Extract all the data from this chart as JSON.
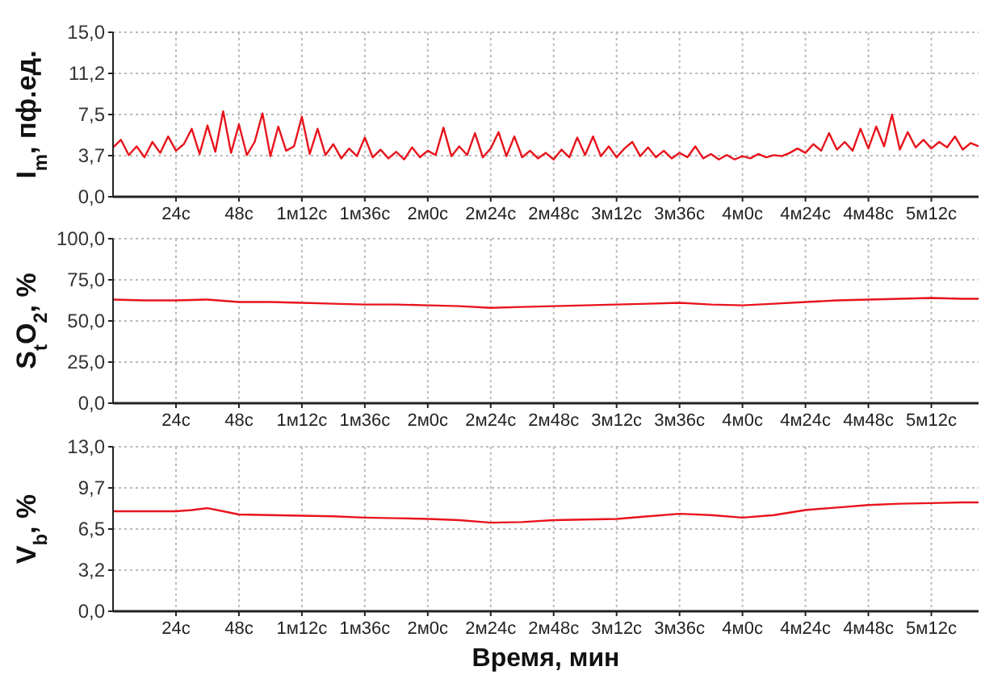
{
  "chart_data": [
    {
      "type": "line",
      "ylabel": "I$_{m}$, пф.ед.",
      "xlim": [
        0,
        330
      ],
      "xticks": [
        {
          "value": 24,
          "label": "24с"
        },
        {
          "value": 48,
          "label": "48с"
        },
        {
          "value": 72,
          "label": "1м12с"
        },
        {
          "value": 96,
          "label": "1м36с"
        },
        {
          "value": 120,
          "label": "2м0с"
        },
        {
          "value": 144,
          "label": "2м24с"
        },
        {
          "value": 168,
          "label": "2м48с"
        },
        {
          "value": 192,
          "label": "3м12с"
        },
        {
          "value": 216,
          "label": "3м36с"
        },
        {
          "value": 240,
          "label": "4м0с"
        },
        {
          "value": 264,
          "label": "4м24с"
        },
        {
          "value": 288,
          "label": "4м48с"
        },
        {
          "value": 312,
          "label": "5м12с"
        }
      ],
      "ylim": [
        0,
        15
      ],
      "yticks": [
        {
          "value": 0,
          "label": "0,0"
        },
        {
          "value": 3.75,
          "label": "3,7"
        },
        {
          "value": 7.5,
          "label": "7,5"
        },
        {
          "value": 11.25,
          "label": "11,2"
        },
        {
          "value": 15,
          "label": "15,0"
        }
      ],
      "grid": true,
      "x": [
        0,
        3,
        6,
        9,
        12,
        15,
        18,
        21,
        24,
        27,
        30,
        33,
        36,
        39,
        42,
        45,
        48,
        51,
        54,
        57,
        60,
        63,
        66,
        69,
        72,
        75,
        78,
        81,
        84,
        87,
        90,
        93,
        96,
        99,
        102,
        105,
        108,
        111,
        114,
        117,
        120,
        123,
        126,
        129,
        132,
        135,
        138,
        141,
        144,
        147,
        150,
        153,
        156,
        159,
        162,
        165,
        168,
        171,
        174,
        177,
        180,
        183,
        186,
        189,
        192,
        195,
        198,
        201,
        204,
        207,
        210,
        213,
        216,
        219,
        222,
        225,
        228,
        231,
        234,
        237,
        240,
        243,
        246,
        249,
        252,
        255,
        258,
        261,
        264,
        267,
        270,
        273,
        276,
        279,
        282,
        285,
        288,
        291,
        294,
        297,
        300,
        303,
        306,
        309,
        312,
        315,
        318,
        321,
        324,
        327,
        330
      ],
      "series": [
        {
          "color": "#e8141c",
          "values": [
            4.5,
            5.2,
            3.8,
            4.6,
            3.6,
            5.0,
            4.0,
            5.5,
            4.2,
            4.8,
            6.2,
            3.9,
            6.5,
            4.1,
            7.8,
            4.0,
            6.6,
            3.8,
            5.0,
            7.6,
            3.7,
            6.4,
            4.2,
            4.6,
            7.3,
            3.9,
            6.2,
            3.8,
            4.8,
            3.5,
            4.4,
            3.7,
            5.4,
            3.6,
            4.3,
            3.5,
            4.1,
            3.4,
            4.5,
            3.6,
            4.2,
            3.8,
            6.3,
            3.7,
            4.6,
            3.8,
            5.8,
            3.6,
            4.4,
            5.9,
            3.7,
            5.5,
            3.6,
            4.2,
            3.5,
            4.0,
            3.4,
            4.3,
            3.6,
            5.4,
            3.8,
            5.5,
            3.7,
            4.6,
            3.6,
            4.4,
            5.0,
            3.7,
            4.5,
            3.6,
            4.2,
            3.5,
            4.0,
            3.6,
            4.6,
            3.5,
            3.9,
            3.4,
            3.8,
            3.4,
            3.7,
            3.5,
            3.9,
            3.6,
            3.8,
            3.7,
            4.0,
            4.4,
            4.0,
            4.8,
            4.2,
            5.8,
            4.3,
            5.0,
            4.2,
            6.2,
            4.4,
            6.4,
            4.6,
            7.5,
            4.3,
            5.9,
            4.5,
            5.2,
            4.4,
            5.0,
            4.5,
            5.5,
            4.3,
            4.9,
            4.6
          ]
        }
      ]
    },
    {
      "type": "line",
      "ylabel": "S$_{t}$O$_{2}$, %",
      "xlim": [
        0,
        330
      ],
      "xticks": [
        {
          "value": 24,
          "label": "24с"
        },
        {
          "value": 48,
          "label": "48с"
        },
        {
          "value": 72,
          "label": "1м12с"
        },
        {
          "value": 96,
          "label": "1м36с"
        },
        {
          "value": 120,
          "label": "2м0с"
        },
        {
          "value": 144,
          "label": "2м24с"
        },
        {
          "value": 168,
          "label": "2м48с"
        },
        {
          "value": 192,
          "label": "3м12с"
        },
        {
          "value": 216,
          "label": "3м36с"
        },
        {
          "value": 240,
          "label": "4м0с"
        },
        {
          "value": 264,
          "label": "4м24с"
        },
        {
          "value": 288,
          "label": "4м48с"
        },
        {
          "value": 312,
          "label": "5м12с"
        }
      ],
      "ylim": [
        0,
        100
      ],
      "yticks": [
        {
          "value": 0,
          "label": "0,0"
        },
        {
          "value": 25,
          "label": "25,0"
        },
        {
          "value": 50,
          "label": "50,0"
        },
        {
          "value": 75,
          "label": "75,0"
        },
        {
          "value": 100,
          "label": "100,0"
        }
      ],
      "grid": true,
      "x": [
        0,
        12,
        24,
        36,
        48,
        60,
        72,
        84,
        96,
        108,
        120,
        132,
        144,
        156,
        168,
        180,
        192,
        204,
        216,
        228,
        240,
        252,
        264,
        276,
        288,
        300,
        312,
        324,
        330
      ],
      "series": [
        {
          "color": "#e8141c",
          "values": [
            63,
            62.5,
            62.5,
            63,
            61.5,
            61.5,
            61,
            60.5,
            60,
            60,
            59.5,
            59,
            58,
            58.5,
            59,
            59.5,
            60,
            60.5,
            61,
            60,
            59.5,
            60.5,
            61.5,
            62.5,
            63,
            63.5,
            64,
            63.5,
            63.5
          ]
        }
      ]
    },
    {
      "type": "line",
      "xlabel": "Время, мин",
      "ylabel": "V$_{b}$, %",
      "xlim": [
        0,
        330
      ],
      "xticks": [
        {
          "value": 24,
          "label": "24с"
        },
        {
          "value": 48,
          "label": "48с"
        },
        {
          "value": 72,
          "label": "1м12с"
        },
        {
          "value": 96,
          "label": "1м36с"
        },
        {
          "value": 120,
          "label": "2м0с"
        },
        {
          "value": 144,
          "label": "2м24с"
        },
        {
          "value": 168,
          "label": "2м48с"
        },
        {
          "value": 192,
          "label": "3м12с"
        },
        {
          "value": 216,
          "label": "3м36с"
        },
        {
          "value": 240,
          "label": "4м0с"
        },
        {
          "value": 264,
          "label": "4м24с"
        },
        {
          "value": 288,
          "label": "4м48с"
        },
        {
          "value": 312,
          "label": "5м12с"
        }
      ],
      "ylim": [
        0,
        13
      ],
      "yticks": [
        {
          "value": 0,
          "label": "0,0"
        },
        {
          "value": 3.25,
          "label": "3,2"
        },
        {
          "value": 6.5,
          "label": "6,5"
        },
        {
          "value": 9.75,
          "label": "9,7"
        },
        {
          "value": 13,
          "label": "13,0"
        }
      ],
      "grid": true,
      "x": [
        0,
        12,
        24,
        30,
        36,
        42,
        48,
        60,
        72,
        84,
        96,
        108,
        120,
        132,
        144,
        156,
        168,
        180,
        192,
        204,
        216,
        228,
        240,
        252,
        264,
        276,
        288,
        300,
        312,
        324,
        330
      ],
      "series": [
        {
          "color": "#e8141c",
          "values": [
            7.9,
            7.9,
            7.9,
            8.0,
            8.15,
            7.9,
            7.65,
            7.6,
            7.55,
            7.5,
            7.4,
            7.35,
            7.3,
            7.2,
            7.0,
            7.05,
            7.2,
            7.25,
            7.3,
            7.5,
            7.7,
            7.6,
            7.4,
            7.6,
            8.0,
            8.2,
            8.4,
            8.5,
            8.55,
            8.6,
            8.6
          ]
        }
      ]
    }
  ]
}
